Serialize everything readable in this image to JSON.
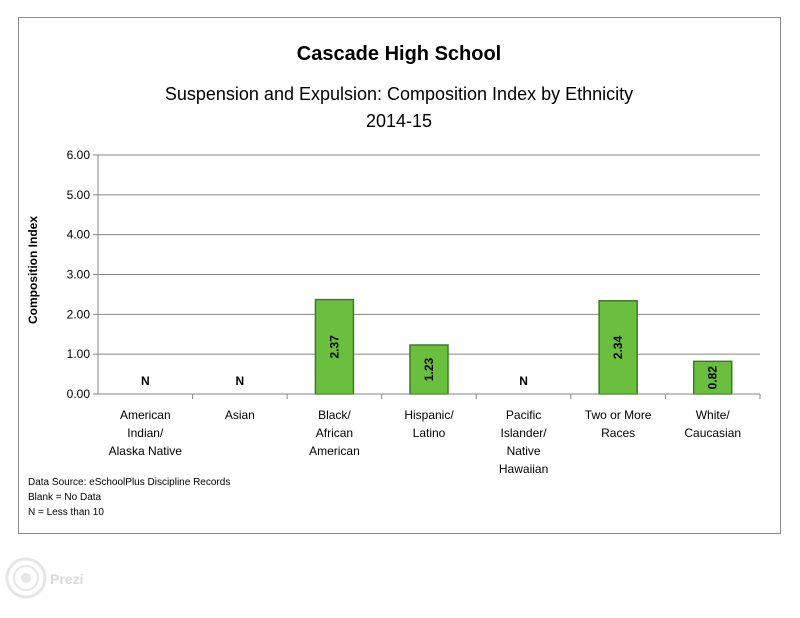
{
  "chart_data": {
    "type": "bar",
    "title": "Cascade High School",
    "subtitle_lines": [
      "Suspension and Expulsion: Composition Index by Ethnicity",
      "2014-15"
    ],
    "ylabel": "Composition Index",
    "xlabel": "",
    "ylim": [
      0,
      6
    ],
    "yticks": [
      "0.00",
      "1.00",
      "2.00",
      "3.00",
      "4.00",
      "5.00",
      "6.00"
    ],
    "grid": true,
    "categories": [
      [
        "American",
        "Indian/",
        "Alaska Native"
      ],
      [
        "Asian"
      ],
      [
        "Black/",
        "African",
        "American"
      ],
      [
        "Hispanic/",
        "Latino"
      ],
      [
        "Pacific",
        "Islander/",
        "Native",
        "Hawaiian"
      ],
      [
        "Two or More",
        "Races"
      ],
      [
        "White/",
        "Caucasian"
      ]
    ],
    "values": [
      null,
      null,
      2.37,
      1.23,
      null,
      2.34,
      0.82
    ],
    "value_labels": [
      "N",
      "N",
      "2.37",
      "1.23",
      "N",
      "2.34",
      "0.82"
    ],
    "bar_color": "#6abf3f",
    "bar_edge_color": "#3a7d1f",
    "notes": [
      "Data Source: eSchoolPlus Discipline Records",
      "Blank = No Data",
      "N = Less than 10"
    ]
  },
  "watermark": {
    "text": "Prezi",
    "icon": "prezi-logo-icon"
  }
}
